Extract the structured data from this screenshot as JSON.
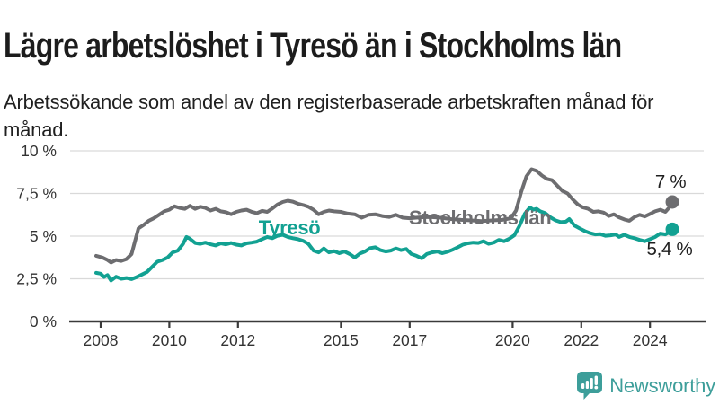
{
  "header": {
    "title": "Lägre arbetslöshet i Tyresö än i Stockholms län",
    "subtitle": "Arbetssökande som andel av den registerbaserade arbetskraften månad för månad."
  },
  "branding": {
    "name": "Newsworthy",
    "logo_icon": "speech-bubble-bar-chart-icon",
    "color": "#3d9e9a"
  },
  "colors": {
    "gridline": "#d9d9d9",
    "axis": "#3a3a3a",
    "tick_label": "#333333",
    "end_label": "#1f1f1f"
  },
  "chart_data": {
    "type": "line",
    "title": "Lägre arbetslöshet i Tyresö än i Stockholms län",
    "subtitle": "Arbetssökande som andel av den registerbaserade arbetskraften månad för månad.",
    "unit": "%",
    "grid": true,
    "xlim": [
      2007.5,
      2025.3
    ],
    "ylim": [
      0,
      10
    ],
    "x_ticks": [
      2008,
      2010,
      2012,
      2015,
      2017,
      2020,
      2022,
      2024
    ],
    "y_ticks": [
      {
        "value": 0,
        "label": "0 %"
      },
      {
        "value": 2.5,
        "label": "2,5 %"
      },
      {
        "value": 5,
        "label": "5 %"
      },
      {
        "value": 7.5,
        "label": "7,5 %"
      },
      {
        "value": 10,
        "label": "10 %"
      }
    ],
    "series": [
      {
        "name": "Stockholms län",
        "slug": "stockholms-lan",
        "color": "#6d6d70",
        "end_label": "7 %",
        "end_value": 7.0,
        "points": [
          [
            2007.87,
            3.85
          ],
          [
            2008.05,
            3.75
          ],
          [
            2008.2,
            3.6
          ],
          [
            2008.3,
            3.45
          ],
          [
            2008.45,
            3.6
          ],
          [
            2008.6,
            3.55
          ],
          [
            2008.75,
            3.65
          ],
          [
            2008.9,
            3.95
          ],
          [
            2009.0,
            4.7
          ],
          [
            2009.1,
            5.45
          ],
          [
            2009.25,
            5.65
          ],
          [
            2009.4,
            5.9
          ],
          [
            2009.55,
            6.05
          ],
          [
            2009.7,
            6.25
          ],
          [
            2009.85,
            6.45
          ],
          [
            2010.0,
            6.55
          ],
          [
            2010.15,
            6.75
          ],
          [
            2010.3,
            6.65
          ],
          [
            2010.45,
            6.6
          ],
          [
            2010.6,
            6.78
          ],
          [
            2010.75,
            6.6
          ],
          [
            2010.9,
            6.72
          ],
          [
            2011.05,
            6.65
          ],
          [
            2011.2,
            6.5
          ],
          [
            2011.35,
            6.6
          ],
          [
            2011.5,
            6.45
          ],
          [
            2011.65,
            6.4
          ],
          [
            2011.8,
            6.28
          ],
          [
            2011.95,
            6.42
          ],
          [
            2012.1,
            6.5
          ],
          [
            2012.25,
            6.55
          ],
          [
            2012.4,
            6.42
          ],
          [
            2012.55,
            6.35
          ],
          [
            2012.7,
            6.48
          ],
          [
            2012.85,
            6.42
          ],
          [
            2013.0,
            6.62
          ],
          [
            2013.15,
            6.85
          ],
          [
            2013.3,
            7.0
          ],
          [
            2013.45,
            7.08
          ],
          [
            2013.6,
            7.02
          ],
          [
            2013.75,
            6.9
          ],
          [
            2013.9,
            6.82
          ],
          [
            2014.05,
            6.72
          ],
          [
            2014.2,
            6.55
          ],
          [
            2014.35,
            6.28
          ],
          [
            2014.5,
            6.42
          ],
          [
            2014.65,
            6.5
          ],
          [
            2014.8,
            6.45
          ],
          [
            2015.0,
            6.42
          ],
          [
            2015.2,
            6.32
          ],
          [
            2015.4,
            6.28
          ],
          [
            2015.6,
            6.08
          ],
          [
            2015.8,
            6.25
          ],
          [
            2016.0,
            6.28
          ],
          [
            2016.2,
            6.18
          ],
          [
            2016.4,
            6.12
          ],
          [
            2016.6,
            6.25
          ],
          [
            2016.8,
            6.08
          ],
          [
            2017.0,
            6.05
          ],
          [
            2017.3,
            6.1
          ],
          [
            2017.6,
            6.12
          ],
          [
            2017.9,
            6.08
          ],
          [
            2018.2,
            6.0
          ],
          [
            2018.5,
            5.95
          ],
          [
            2018.8,
            5.92
          ],
          [
            2019.1,
            5.88
          ],
          [
            2019.4,
            5.92
          ],
          [
            2019.7,
            5.95
          ],
          [
            2019.95,
            6.05
          ],
          [
            2020.1,
            6.5
          ],
          [
            2020.25,
            7.6
          ],
          [
            2020.4,
            8.5
          ],
          [
            2020.55,
            8.92
          ],
          [
            2020.7,
            8.82
          ],
          [
            2020.85,
            8.55
          ],
          [
            2021.0,
            8.35
          ],
          [
            2021.15,
            8.28
          ],
          [
            2021.3,
            7.95
          ],
          [
            2021.45,
            7.65
          ],
          [
            2021.6,
            7.5
          ],
          [
            2021.75,
            7.15
          ],
          [
            2021.9,
            6.85
          ],
          [
            2022.05,
            6.68
          ],
          [
            2022.2,
            6.6
          ],
          [
            2022.35,
            6.42
          ],
          [
            2022.5,
            6.45
          ],
          [
            2022.65,
            6.38
          ],
          [
            2022.8,
            6.18
          ],
          [
            2022.95,
            6.28
          ],
          [
            2023.1,
            6.1
          ],
          [
            2023.25,
            5.98
          ],
          [
            2023.4,
            5.9
          ],
          [
            2023.55,
            6.12
          ],
          [
            2023.7,
            6.25
          ],
          [
            2023.85,
            6.15
          ],
          [
            2024.0,
            6.3
          ],
          [
            2024.15,
            6.45
          ],
          [
            2024.3,
            6.55
          ],
          [
            2024.45,
            6.42
          ],
          [
            2024.55,
            6.65
          ],
          [
            2024.65,
            7.0
          ]
        ]
      },
      {
        "name": "Tyresö",
        "slug": "tyreso",
        "color": "#12a192",
        "end_label": "5,4 %",
        "end_value": 5.4,
        "points": [
          [
            2007.87,
            2.85
          ],
          [
            2008.0,
            2.8
          ],
          [
            2008.1,
            2.6
          ],
          [
            2008.2,
            2.72
          ],
          [
            2008.3,
            2.4
          ],
          [
            2008.45,
            2.62
          ],
          [
            2008.6,
            2.5
          ],
          [
            2008.75,
            2.55
          ],
          [
            2008.9,
            2.48
          ],
          [
            2009.05,
            2.6
          ],
          [
            2009.2,
            2.75
          ],
          [
            2009.35,
            2.9
          ],
          [
            2009.5,
            3.2
          ],
          [
            2009.65,
            3.5
          ],
          [
            2009.8,
            3.6
          ],
          [
            2009.95,
            3.75
          ],
          [
            2010.1,
            4.05
          ],
          [
            2010.25,
            4.15
          ],
          [
            2010.4,
            4.55
          ],
          [
            2010.5,
            4.95
          ],
          [
            2010.6,
            4.85
          ],
          [
            2010.75,
            4.6
          ],
          [
            2010.9,
            4.55
          ],
          [
            2011.05,
            4.62
          ],
          [
            2011.2,
            4.52
          ],
          [
            2011.35,
            4.45
          ],
          [
            2011.5,
            4.58
          ],
          [
            2011.65,
            4.52
          ],
          [
            2011.8,
            4.6
          ],
          [
            2011.95,
            4.5
          ],
          [
            2012.1,
            4.45
          ],
          [
            2012.25,
            4.58
          ],
          [
            2012.4,
            4.62
          ],
          [
            2012.55,
            4.68
          ],
          [
            2012.7,
            4.82
          ],
          [
            2012.85,
            4.95
          ],
          [
            2013.0,
            4.88
          ],
          [
            2013.15,
            5.02
          ],
          [
            2013.3,
            5.08
          ],
          [
            2013.45,
            4.95
          ],
          [
            2013.6,
            4.88
          ],
          [
            2013.75,
            4.82
          ],
          [
            2013.9,
            4.72
          ],
          [
            2014.05,
            4.55
          ],
          [
            2014.2,
            4.15
          ],
          [
            2014.35,
            4.05
          ],
          [
            2014.5,
            4.28
          ],
          [
            2014.65,
            4.05
          ],
          [
            2014.8,
            4.12
          ],
          [
            2014.95,
            4.0
          ],
          [
            2015.1,
            4.1
          ],
          [
            2015.25,
            3.95
          ],
          [
            2015.4,
            3.75
          ],
          [
            2015.55,
            3.98
          ],
          [
            2015.7,
            4.1
          ],
          [
            2015.85,
            4.3
          ],
          [
            2016.0,
            4.35
          ],
          [
            2016.15,
            4.18
          ],
          [
            2016.3,
            4.1
          ],
          [
            2016.45,
            4.15
          ],
          [
            2016.6,
            4.28
          ],
          [
            2016.75,
            4.18
          ],
          [
            2016.9,
            4.25
          ],
          [
            2017.05,
            3.95
          ],
          [
            2017.2,
            3.85
          ],
          [
            2017.35,
            3.7
          ],
          [
            2017.5,
            3.95
          ],
          [
            2017.65,
            4.05
          ],
          [
            2017.8,
            4.1
          ],
          [
            2017.95,
            4.0
          ],
          [
            2018.1,
            4.08
          ],
          [
            2018.25,
            4.2
          ],
          [
            2018.4,
            4.35
          ],
          [
            2018.55,
            4.5
          ],
          [
            2018.7,
            4.58
          ],
          [
            2018.85,
            4.62
          ],
          [
            2019.0,
            4.6
          ],
          [
            2019.15,
            4.7
          ],
          [
            2019.3,
            4.55
          ],
          [
            2019.45,
            4.62
          ],
          [
            2019.6,
            4.78
          ],
          [
            2019.75,
            4.7
          ],
          [
            2019.9,
            4.85
          ],
          [
            2020.05,
            5.05
          ],
          [
            2020.2,
            5.6
          ],
          [
            2020.35,
            6.3
          ],
          [
            2020.5,
            6.68
          ],
          [
            2020.6,
            6.55
          ],
          [
            2020.7,
            6.6
          ],
          [
            2020.8,
            6.45
          ],
          [
            2020.95,
            6.35
          ],
          [
            2021.1,
            6.1
          ],
          [
            2021.25,
            5.92
          ],
          [
            2021.4,
            5.82
          ],
          [
            2021.55,
            5.85
          ],
          [
            2021.65,
            6.0
          ],
          [
            2021.8,
            5.62
          ],
          [
            2021.95,
            5.45
          ],
          [
            2022.1,
            5.3
          ],
          [
            2022.25,
            5.18
          ],
          [
            2022.4,
            5.1
          ],
          [
            2022.55,
            5.12
          ],
          [
            2022.7,
            5.02
          ],
          [
            2022.85,
            5.05
          ],
          [
            2023.0,
            5.1
          ],
          [
            2023.1,
            4.95
          ],
          [
            2023.25,
            5.08
          ],
          [
            2023.4,
            4.95
          ],
          [
            2023.55,
            4.88
          ],
          [
            2023.7,
            4.78
          ],
          [
            2023.85,
            4.7
          ],
          [
            2024.0,
            4.82
          ],
          [
            2024.15,
            4.95
          ],
          [
            2024.3,
            5.15
          ],
          [
            2024.45,
            5.1
          ],
          [
            2024.55,
            5.22
          ],
          [
            2024.65,
            5.4
          ]
        ]
      }
    ],
    "annotations": [
      {
        "text": "Tyresö",
        "x": 2013.5,
        "value": 5.1,
        "anchor": "middle",
        "series": "tyreso",
        "style": "series-label"
      },
      {
        "text": "Stockholms län",
        "x": 2016.98,
        "value": 5.68,
        "anchor": "start",
        "series": "stockholms-lan",
        "style": "series-label"
      },
      {
        "text": "7 %",
        "x": 2024.6,
        "value": 7.84,
        "anchor": "middle",
        "series": "stockholms-lan",
        "style": "end-label"
      },
      {
        "text": "5,4 %",
        "x": 2024.57,
        "value": 3.89,
        "anchor": "middle",
        "series": "tyreso",
        "style": "end-label"
      }
    ],
    "legend_position": "inline-labels"
  }
}
